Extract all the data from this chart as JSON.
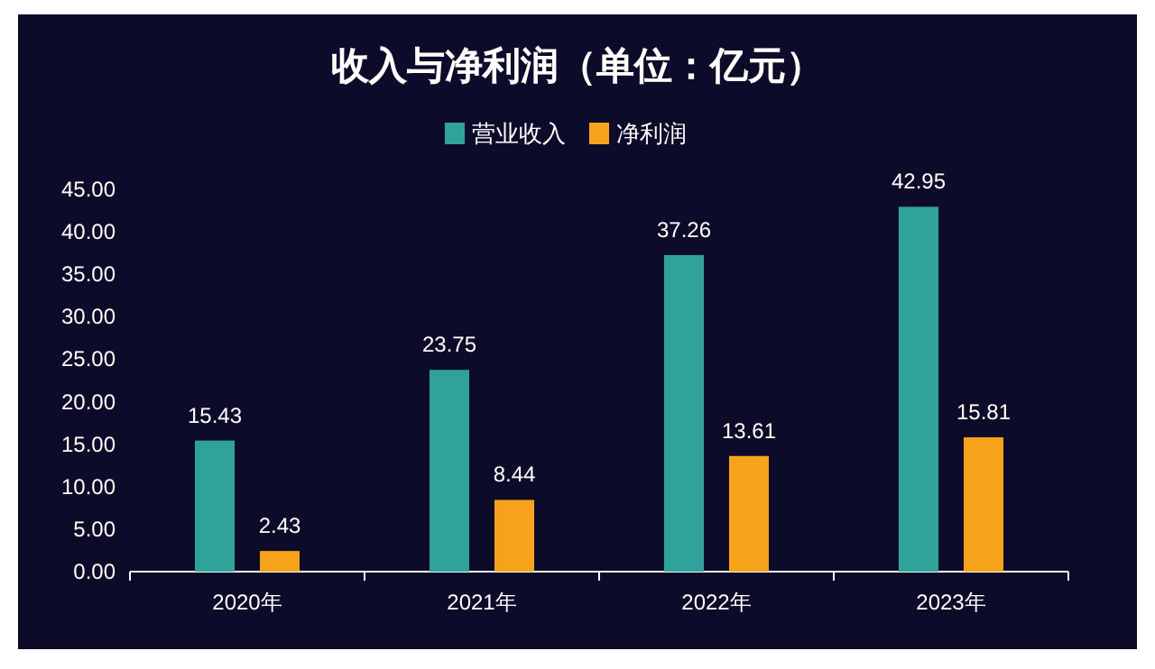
{
  "chart_data": {
    "type": "bar",
    "title": "收入与净利润（单位：亿元）",
    "categories": [
      "2020年",
      "2021年",
      "2022年",
      "2023年"
    ],
    "series": [
      {
        "name": "营业收入",
        "color": "#2fa39a",
        "values": [
          15.43,
          23.75,
          37.26,
          42.95
        ]
      },
      {
        "name": "净利润",
        "color": "#f7a21b",
        "values": [
          2.43,
          8.44,
          13.61,
          15.81
        ]
      }
    ],
    "ylim": [
      0,
      45
    ],
    "yticks": [
      {
        "value": 0,
        "label": "0.00"
      },
      {
        "value": 5,
        "label": "5.00"
      },
      {
        "value": 10,
        "label": "10.00"
      },
      {
        "value": 15,
        "label": "15.00"
      },
      {
        "value": 20,
        "label": "20.00"
      },
      {
        "value": 25,
        "label": "25.00"
      },
      {
        "value": 30,
        "label": "30.00"
      },
      {
        "value": 35,
        "label": "35.00"
      },
      {
        "value": 40,
        "label": "40.00"
      },
      {
        "value": 45,
        "label": "45.00"
      }
    ],
    "data_labels": true,
    "legend": "top",
    "grid": false
  }
}
